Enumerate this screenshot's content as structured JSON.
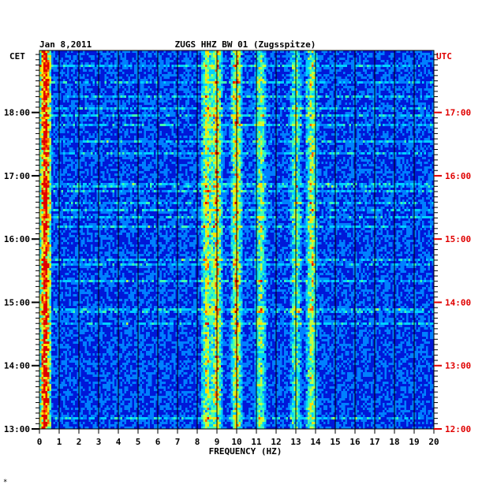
{
  "chart_data": {
    "type": "heatmap",
    "title_left": "Jan 8,2011",
    "title_center": "ZUGS HHZ BW 01 (Zugsspitze)",
    "left_axis_label": "CET",
    "right_axis_label": "UTC",
    "xlabel": "FREQUENCY (HZ)",
    "x_ticks": [
      "0",
      "1",
      "2",
      "3",
      "4",
      "5",
      "6",
      "7",
      "8",
      "9",
      "10",
      "11",
      "12",
      "13",
      "14",
      "15",
      "16",
      "17",
      "18",
      "19",
      "20"
    ],
    "xlim": [
      0,
      20
    ],
    "left_ticks": [
      {
        "label": "18:00",
        "hours": 18
      },
      {
        "label": "17:00",
        "hours": 17
      },
      {
        "label": "16:00",
        "hours": 16
      },
      {
        "label": "15:00",
        "hours": 15
      },
      {
        "label": "14:00",
        "hours": 14
      },
      {
        "label": "13:00",
        "hours": 13
      }
    ],
    "right_ticks": [
      {
        "label": "17:00",
        "hours": 17
      },
      {
        "label": "16:00",
        "hours": 16
      },
      {
        "label": "15:00",
        "hours": 15
      },
      {
        "label": "14:00",
        "hours": 14
      },
      {
        "label": "13:00",
        "hours": 13
      },
      {
        "label": "12:00",
        "hours": 12
      }
    ],
    "left_time_range": [
      13.0,
      18.98
    ],
    "grid": true,
    "colormap": [
      "#000080",
      "#0000c8",
      "#0028ff",
      "#0080ff",
      "#00d0ff",
      "#40ffb0",
      "#c0ff40",
      "#ffe000",
      "#ff6000",
      "#e00000"
    ],
    "energy_bands_hz": [
      {
        "freq": 0.3,
        "strength": 0.85
      },
      {
        "freq": 8.5,
        "strength": 0.5
      },
      {
        "freq": 9.0,
        "strength": 0.55
      },
      {
        "freq": 10.0,
        "strength": 0.55
      },
      {
        "freq": 11.2,
        "strength": 0.4
      },
      {
        "freq": 13.0,
        "strength": 0.35
      },
      {
        "freq": 13.8,
        "strength": 0.45
      }
    ]
  },
  "footer_mark": "*"
}
